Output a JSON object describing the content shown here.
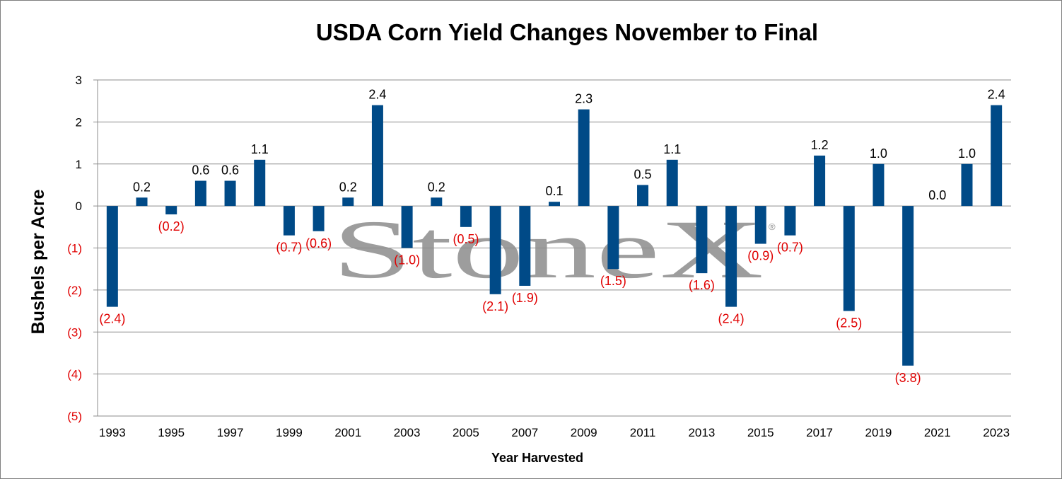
{
  "chart_data": {
    "type": "bar",
    "title": "USDA Corn Yield Changes November to Final",
    "xlabel": "Year Harvested",
    "ylabel": "Bushels per Acre",
    "ylim": [
      -5,
      3
    ],
    "y_ticks": [
      3,
      2,
      1,
      0,
      -1,
      -2,
      -3,
      -4,
      -5
    ],
    "y_tick_labels": [
      "3",
      "2",
      "1",
      "0",
      "(1)",
      "(2)",
      "(3)",
      "(4)",
      "(5)"
    ],
    "grid": true,
    "legend": "none",
    "categories": [
      1993,
      1994,
      1995,
      1996,
      1997,
      1998,
      1999,
      2000,
      2001,
      2002,
      2003,
      2004,
      2005,
      2006,
      2007,
      2008,
      2009,
      2010,
      2011,
      2012,
      2013,
      2014,
      2015,
      2016,
      2017,
      2018,
      2019,
      2020,
      2021,
      2022,
      2023
    ],
    "x_tick_labels": [
      "1993",
      "1995",
      "1997",
      "1999",
      "2001",
      "2003",
      "2005",
      "2007",
      "2009",
      "2011",
      "2013",
      "2015",
      "2017",
      "2019",
      "2021",
      "2023"
    ],
    "values": [
      -2.4,
      0.2,
      -0.2,
      0.6,
      0.6,
      1.1,
      -0.7,
      -0.6,
      0.2,
      2.4,
      -1.0,
      0.2,
      -0.5,
      -2.1,
      -1.9,
      0.1,
      2.3,
      -1.5,
      0.5,
      1.1,
      -1.6,
      -2.4,
      -0.9,
      -0.7,
      1.2,
      -2.5,
      1.0,
      -3.8,
      0.0,
      1.0,
      2.4
    ],
    "data_labels": [
      "(2.4)",
      "0.2",
      "(0.2)",
      "0.6",
      "0.6",
      "1.1",
      "(0.7)",
      "(0.6)",
      "0.2",
      "2.4",
      "(1.0)",
      "0.2",
      "(0.5)",
      "(2.1)",
      "(1.9)",
      "0.1",
      "2.3",
      "(1.5)",
      "0.5",
      "1.1",
      "(1.6)",
      "(2.4)",
      "(0.9)",
      "(0.7)",
      "1.2",
      "(2.5)",
      "1.0",
      "(3.8)",
      "0.0",
      "1.0",
      "2.4"
    ],
    "colors": {
      "bar": "#004a87",
      "positive_label": "#000000",
      "negative_label": "#e00000",
      "grid": "#8c8c8c"
    }
  },
  "watermark": {
    "text": "StoneX",
    "mark": "®"
  }
}
